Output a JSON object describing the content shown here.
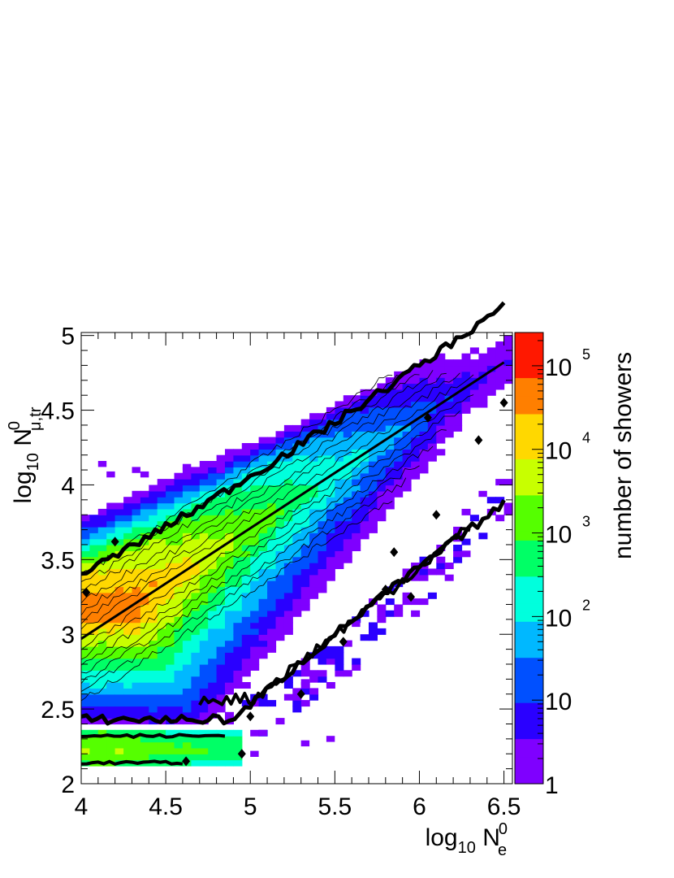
{
  "chart_data": {
    "type": "heatmap",
    "xlabel": {
      "base": "log",
      "sub": "10",
      "var": "N",
      "sup": "0",
      "varsub": "e"
    },
    "ylabel": {
      "base": "log",
      "sub": "10",
      "var": "N",
      "sup": "0",
      "varsub": "μ,tr"
    },
    "zlabel": "number of showers",
    "xlim": [
      4.0,
      6.55
    ],
    "ylim": [
      2.0,
      5.02
    ],
    "xticks": [
      4,
      4.5,
      5,
      5.5,
      6,
      6.5
    ],
    "xtick_labels": [
      "4",
      "4.5",
      "5",
      "5.5",
      "6",
      "6.5"
    ],
    "yticks": [
      2,
      2.5,
      3,
      3.5,
      4,
      4.5,
      5
    ],
    "ytick_labels": [
      "2",
      "2.5",
      "3",
      "3.5",
      "4",
      "4.5",
      "5"
    ],
    "zscale": "log",
    "zlim": [
      1,
      250000
    ],
    "zticks": [
      {
        "value": 1,
        "label": "1"
      },
      {
        "value": 10,
        "label": "10"
      },
      {
        "value": 100,
        "label": "10",
        "exp": "2"
      },
      {
        "value": 1000,
        "label": "10",
        "exp": "3"
      },
      {
        "value": 10000,
        "label": "10",
        "exp": "4"
      },
      {
        "value": 100000,
        "label": "10",
        "exp": "5"
      }
    ],
    "colormap": [
      "#7f00ff",
      "#2a00ff",
      "#0050ff",
      "#00b8ff",
      "#00ffdd",
      "#00ff66",
      "#55ff00",
      "#c8ff00",
      "#ffd800",
      "#ff7f00",
      "#ff1800"
    ],
    "bin_width_x": 0.05,
    "bin_width_y": 0.04,
    "fit_line": {
      "x": [
        4.0,
        6.5
      ],
      "y": [
        2.97,
        4.82
      ],
      "color": "#000000"
    },
    "grid": false,
    "legend": "none"
  }
}
